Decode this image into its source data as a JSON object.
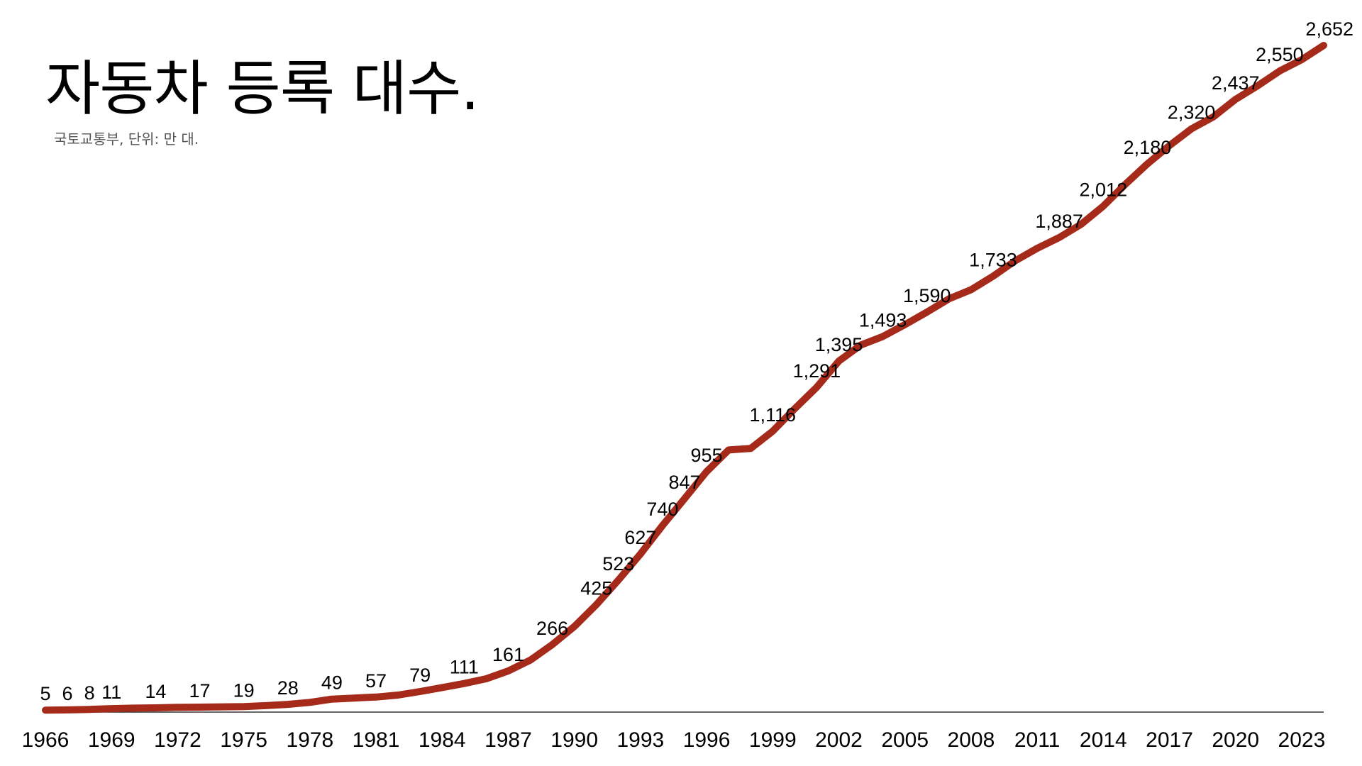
{
  "header": {
    "title": "자동차 등록 대수.",
    "subtitle": "국토교통부, 단위: 만 대."
  },
  "colors": {
    "line": "#a52a1a",
    "axis": "#333333",
    "text": "#000000"
  },
  "chart_data": {
    "type": "line",
    "title": "자동차 등록 대수.",
    "subtitle": "국토교통부, 단위: 만 대.",
    "xlabel": "",
    "ylabel": "",
    "grid": false,
    "legend": "none",
    "x": [
      1966,
      1967,
      1968,
      1969,
      1970,
      1971,
      1972,
      1973,
      1974,
      1975,
      1976,
      1977,
      1978,
      1979,
      1980,
      1981,
      1982,
      1983,
      1984,
      1985,
      1986,
      1987,
      1988,
      1989,
      1990,
      1991,
      1992,
      1993,
      1994,
      1995,
      1996,
      1997,
      1998,
      1999,
      2000,
      2001,
      2002,
      2003,
      2004,
      2005,
      2006,
      2007,
      2008,
      2009,
      2010,
      2011,
      2012,
      2013,
      2014,
      2015,
      2016,
      2017,
      2018,
      2019,
      2020,
      2021,
      2022,
      2023,
      2024
    ],
    "values": [
      5,
      6,
      8,
      11,
      13,
      14,
      16,
      17,
      18,
      19,
      23,
      28,
      36,
      49,
      53,
      57,
      65,
      79,
      95,
      111,
      130,
      161,
      204,
      266,
      338,
      425,
      523,
      627,
      740,
      847,
      955,
      1041,
      1047,
      1116,
      1205,
      1291,
      1395,
      1459,
      1493,
      1540,
      1590,
      1643,
      1679,
      1733,
      1794,
      1844,
      1887,
      1940,
      2012,
      2099,
      2180,
      2253,
      2320,
      2368,
      2437,
      2491,
      2550,
      2595,
      2652
    ],
    "point_labels": [
      {
        "x": 1966,
        "text": "5"
      },
      {
        "x": 1967,
        "text": "6"
      },
      {
        "x": 1968,
        "text": "8"
      },
      {
        "x": 1969,
        "text": "11"
      },
      {
        "x": 1971,
        "text": "14"
      },
      {
        "x": 1973,
        "text": "17"
      },
      {
        "x": 1975,
        "text": "19"
      },
      {
        "x": 1977,
        "text": "28"
      },
      {
        "x": 1979,
        "text": "49"
      },
      {
        "x": 1981,
        "text": "57"
      },
      {
        "x": 1983,
        "text": "79"
      },
      {
        "x": 1985,
        "text": "111"
      },
      {
        "x": 1987,
        "text": "161"
      },
      {
        "x": 1989,
        "text": "266"
      },
      {
        "x": 1991,
        "text": "425"
      },
      {
        "x": 1992,
        "text": "523"
      },
      {
        "x": 1993,
        "text": "627"
      },
      {
        "x": 1994,
        "text": "740"
      },
      {
        "x": 1995,
        "text": "847"
      },
      {
        "x": 1996,
        "text": "955"
      },
      {
        "x": 1999,
        "text": "1,116"
      },
      {
        "x": 2001,
        "text": "1,291"
      },
      {
        "x": 2002,
        "text": "1,395"
      },
      {
        "x": 2004,
        "text": "1,493"
      },
      {
        "x": 2006,
        "text": "1,590"
      },
      {
        "x": 2009,
        "text": "1,733"
      },
      {
        "x": 2012,
        "text": "1,887"
      },
      {
        "x": 2014,
        "text": "2,012"
      },
      {
        "x": 2016,
        "text": "2,180"
      },
      {
        "x": 2018,
        "text": "2,320"
      },
      {
        "x": 2020,
        "text": "2,437"
      },
      {
        "x": 2022,
        "text": "2,550"
      },
      {
        "x": 2024,
        "text": "2,652"
      }
    ],
    "x_ticks": [
      "1966",
      "1969",
      "1972",
      "1975",
      "1978",
      "1981",
      "1984",
      "1987",
      "1990",
      "1993",
      "1996",
      "1999",
      "2002",
      "2005",
      "2008",
      "2011",
      "2014",
      "2017",
      "2020",
      "2023"
    ],
    "xlim": [
      1966,
      2024
    ],
    "ylim": [
      0,
      2652
    ]
  }
}
